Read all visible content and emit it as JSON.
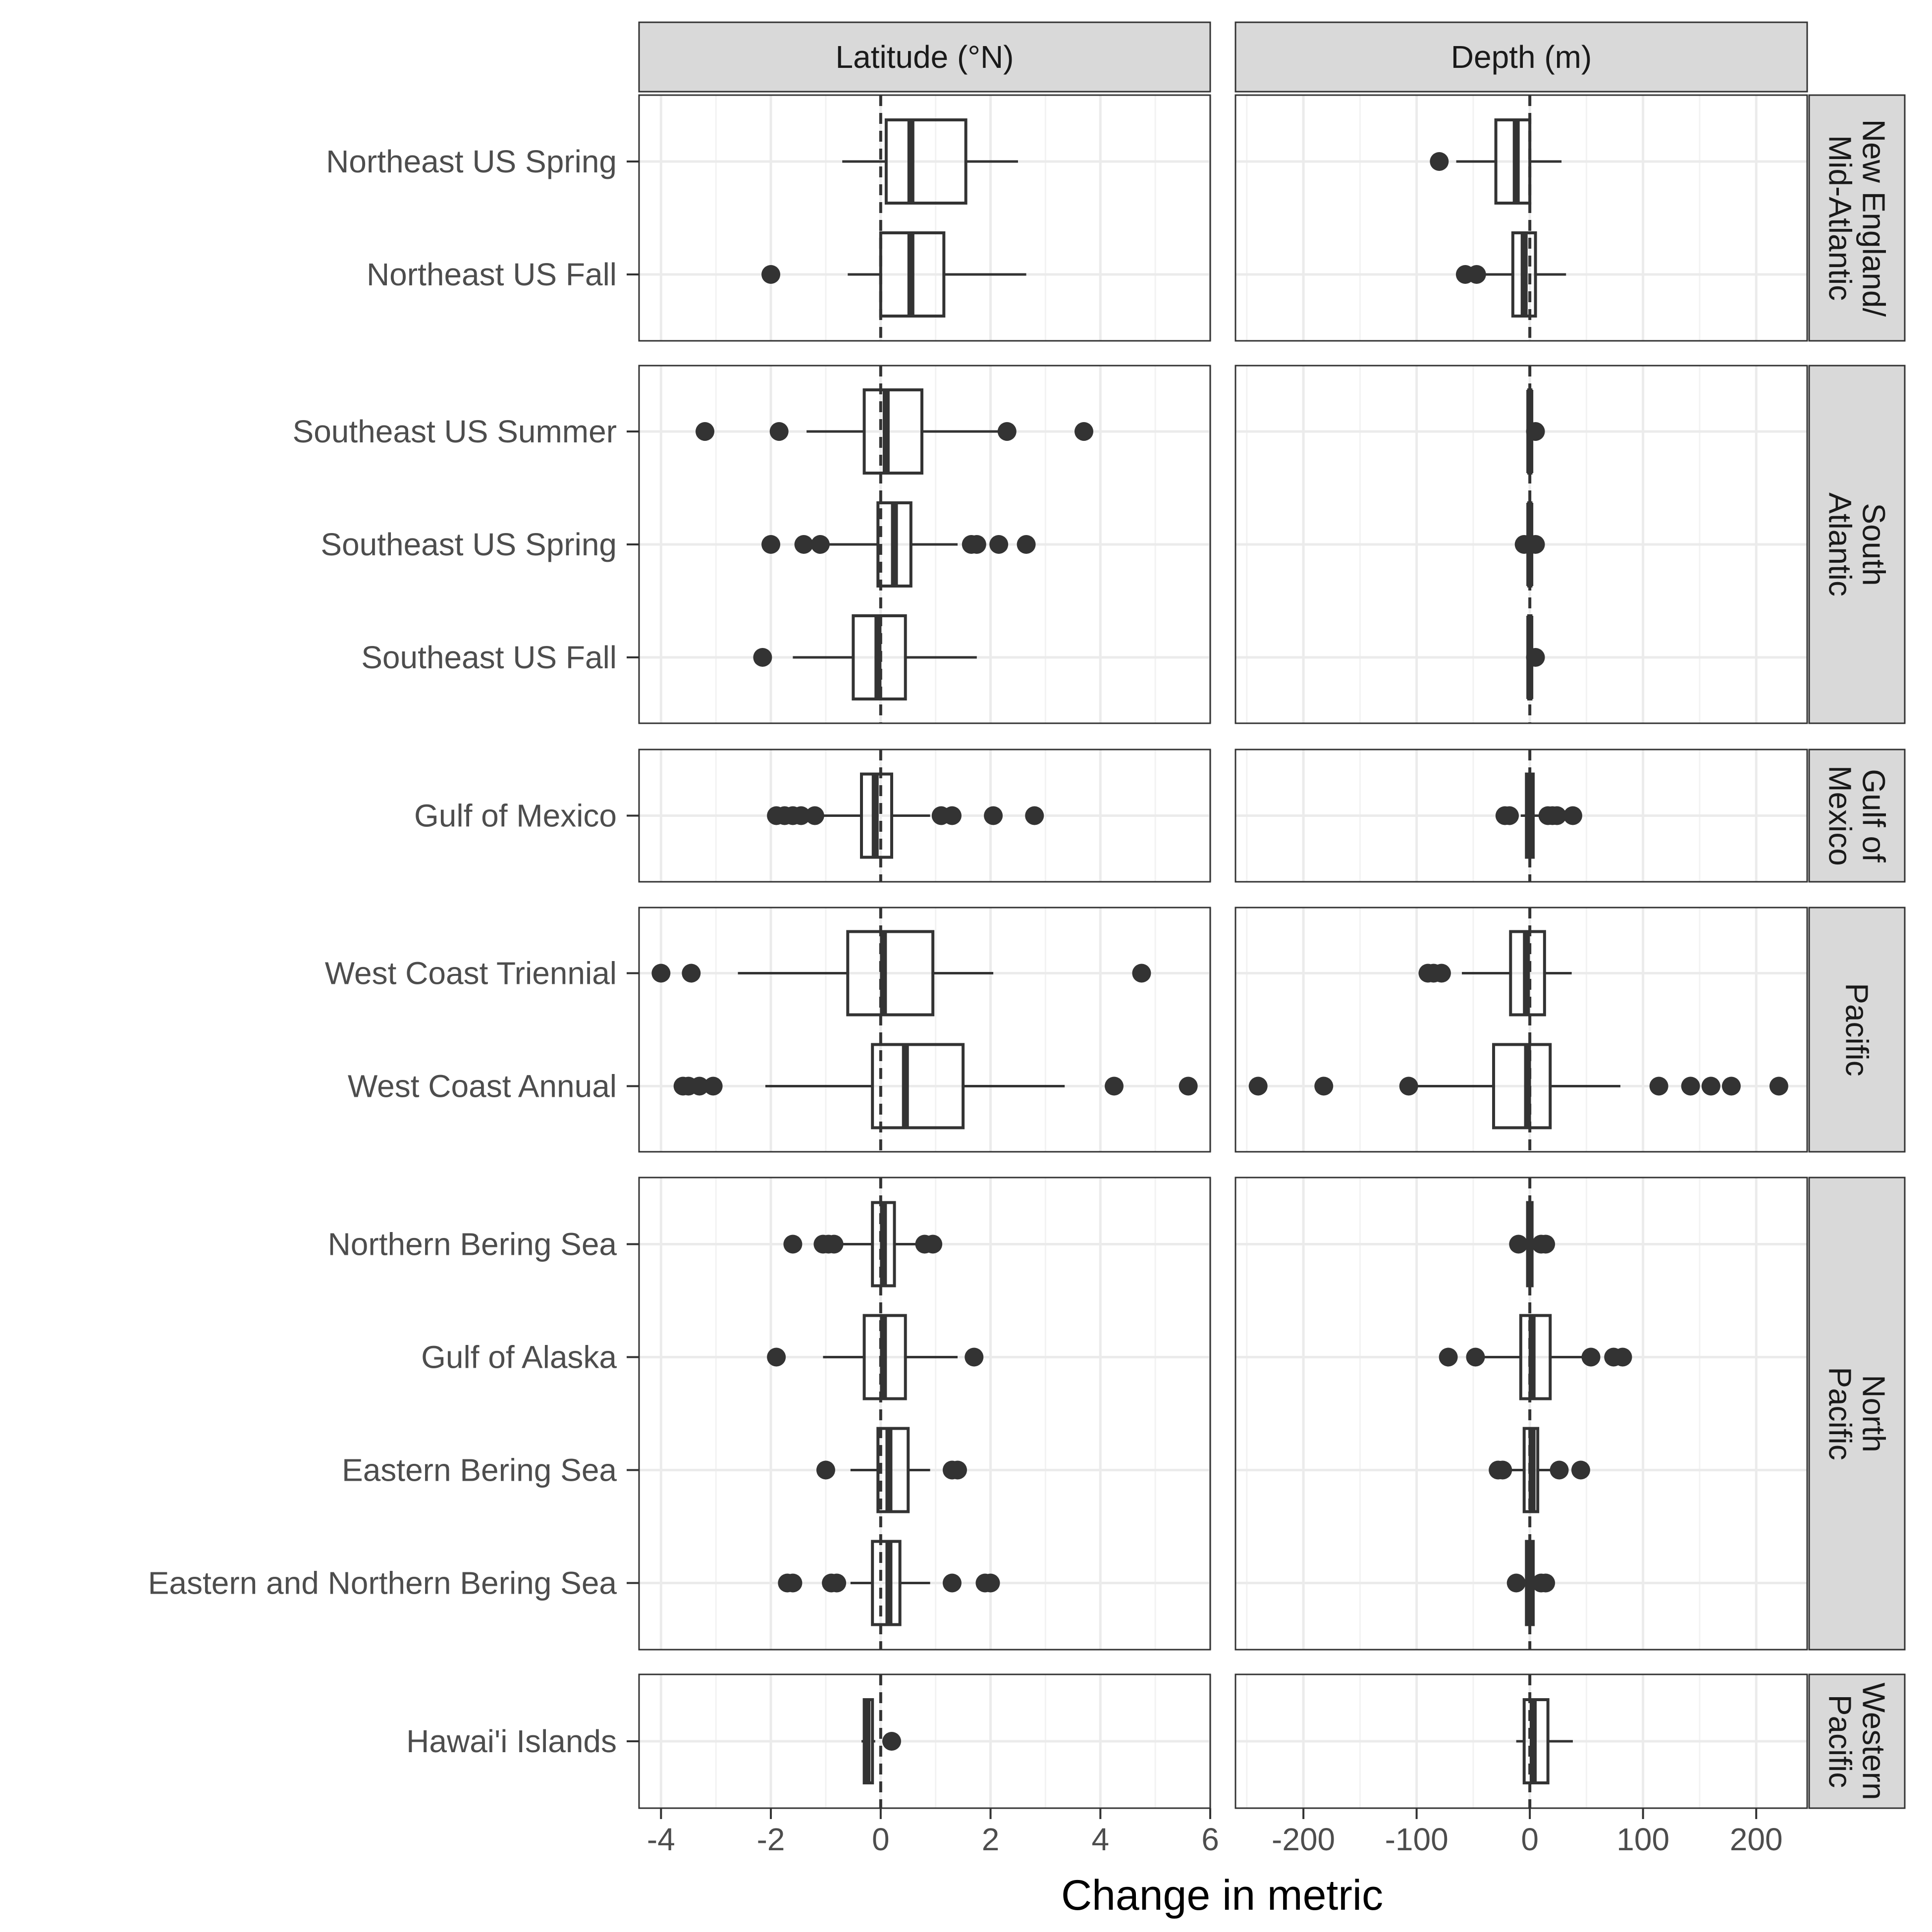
{
  "chart_data": {
    "type": "boxplot",
    "xlabel": "Change in metric",
    "ylabel": "",
    "facet_columns": [
      {
        "name": "Latitude (°N)",
        "xlim": [
          -4.4,
          6.0
        ],
        "ticks": [
          -4,
          -2,
          0,
          2,
          4,
          6
        ],
        "tick_labels": [
          "-4",
          "-2",
          "0",
          "2",
          "4",
          "6"
        ]
      },
      {
        "name": "Depth (m)",
        "xlim": [
          -260,
          245
        ],
        "ticks": [
          -200,
          -100,
          0,
          100,
          200
        ],
        "tick_labels": [
          "-200",
          "-100",
          "0",
          "100",
          "200"
        ]
      }
    ],
    "regions": [
      {
        "name": "New England/ Mid-Atlantic",
        "label_lines": [
          "New England/",
          "Mid-Atlantic"
        ],
        "surveys": [
          "Northeast US Spring",
          "Northeast US Fall"
        ]
      },
      {
        "name": "South Atlantic",
        "label_lines": [
          "South",
          "Atlantic"
        ],
        "surveys": [
          "Southeast US Summer",
          "Southeast US Spring",
          "Southeast US Fall"
        ]
      },
      {
        "name": "Gulf of Mexico",
        "label_lines": [
          "Gulf of",
          "Mexico"
        ],
        "surveys": [
          "Gulf of Mexico"
        ]
      },
      {
        "name": "Pacific",
        "label_lines": [
          "Pacific"
        ],
        "surveys": [
          "West Coast Triennial",
          "West Coast Annual"
        ]
      },
      {
        "name": "North Pacific",
        "label_lines": [
          "North",
          "Pacific"
        ],
        "surveys": [
          "Northern Bering Sea",
          "Gulf of Alaska",
          "Eastern Bering Sea",
          "Eastern and Northern Bering Sea"
        ]
      },
      {
        "name": "Western Pacific",
        "label_lines": [
          "Western",
          "Pacific"
        ],
        "surveys": [
          "Hawai'i Islands"
        ]
      }
    ],
    "reference_line": 0,
    "series": {
      "Latitude (°N)": [
        {
          "survey": "Northeast US Spring",
          "whisker_low": -0.7,
          "q1": 0.1,
          "median": 0.55,
          "q3": 1.55,
          "whisker_high": 2.5,
          "outliers": []
        },
        {
          "survey": "Northeast US Fall",
          "whisker_low": -0.6,
          "q1": 0.0,
          "median": 0.55,
          "q3": 1.15,
          "whisker_high": 2.65,
          "outliers": [
            -2.0
          ]
        },
        {
          "survey": "Southeast US Summer",
          "whisker_low": -1.35,
          "q1": -0.3,
          "median": 0.1,
          "q3": 0.75,
          "whisker_high": 2.25,
          "outliers": [
            -3.2,
            -1.85,
            2.3,
            3.7
          ]
        },
        {
          "survey": "Southeast US Spring",
          "whisker_low": -1.0,
          "q1": -0.05,
          "median": 0.25,
          "q3": 0.55,
          "whisker_high": 1.4,
          "outliers": [
            -2.0,
            -1.4,
            -1.1,
            1.65,
            1.75,
            2.15,
            2.65
          ]
        },
        {
          "survey": "Southeast US Fall",
          "whisker_low": -1.6,
          "q1": -0.5,
          "median": -0.05,
          "q3": 0.45,
          "whisker_high": 1.75,
          "outliers": [
            -2.15
          ]
        },
        {
          "survey": "Gulf of Mexico",
          "whisker_low": -1.1,
          "q1": -0.35,
          "median": -0.1,
          "q3": 0.2,
          "whisker_high": 0.9,
          "outliers": [
            -1.9,
            -1.75,
            -1.6,
            -1.45,
            -1.2,
            1.1,
            1.3,
            2.05,
            2.8
          ]
        },
        {
          "survey": "West Coast Triennial",
          "whisker_low": -2.6,
          "q1": -0.6,
          "median": 0.05,
          "q3": 0.95,
          "whisker_high": 2.05,
          "outliers": [
            -4.0,
            -3.45,
            4.75
          ]
        },
        {
          "survey": "West Coast Annual",
          "whisker_low": -2.1,
          "q1": -0.15,
          "median": 0.45,
          "q3": 1.5,
          "whisker_high": 3.35,
          "outliers": [
            -3.6,
            -3.5,
            -3.3,
            -3.05,
            4.25,
            5.6
          ]
        },
        {
          "survey": "Northern Bering Sea",
          "whisker_low": -0.7,
          "q1": -0.15,
          "median": 0.05,
          "q3": 0.25,
          "whisker_high": 0.7,
          "outliers": [
            -1.6,
            -1.05,
            -0.95,
            -0.85,
            0.8,
            0.95
          ]
        },
        {
          "survey": "Gulf of Alaska",
          "whisker_low": -1.05,
          "q1": -0.3,
          "median": 0.05,
          "q3": 0.45,
          "whisker_high": 1.4,
          "outliers": [
            -1.9,
            1.7
          ]
        },
        {
          "survey": "Eastern Bering Sea",
          "whisker_low": -0.55,
          "q1": -0.05,
          "median": 0.15,
          "q3": 0.5,
          "whisker_high": 0.9,
          "outliers": [
            -1.0,
            1.3,
            1.4
          ]
        },
        {
          "survey": "Eastern and Northern Bering Sea",
          "whisker_low": -0.55,
          "q1": -0.15,
          "median": 0.15,
          "q3": 0.35,
          "whisker_high": 0.9,
          "outliers": [
            -1.7,
            -1.6,
            -0.9,
            -0.8,
            1.3,
            1.9,
            2.0
          ]
        },
        {
          "survey": "Hawai'i Islands",
          "whisker_low": -0.35,
          "q1": -0.3,
          "median": -0.25,
          "q3": -0.15,
          "whisker_high": -0.1,
          "outliers": [
            0.2
          ]
        }
      ],
      "Depth (m)": [
        {
          "survey": "Northeast US Spring",
          "whisker_low": -65,
          "q1": -30,
          "median": -12,
          "q3": 0,
          "whisker_high": 28,
          "outliers": [
            -80
          ]
        },
        {
          "survey": "Northeast US Fall",
          "whisker_low": -40,
          "q1": -15,
          "median": -5,
          "q3": 5,
          "whisker_high": 32,
          "outliers": [
            -57,
            -47
          ]
        },
        {
          "survey": "Southeast US Summer",
          "whisker_low": -2,
          "q1": -1,
          "median": 0,
          "q3": 1,
          "whisker_high": 3,
          "outliers": [
            5
          ]
        },
        {
          "survey": "Southeast US Spring",
          "whisker_low": -2,
          "q1": -1,
          "median": 0,
          "q3": 1,
          "whisker_high": 2,
          "outliers": [
            -5,
            5
          ]
        },
        {
          "survey": "Southeast US Fall",
          "whisker_low": -2,
          "q1": -1,
          "median": 0,
          "q3": 1,
          "whisker_high": 2,
          "outliers": [
            5
          ]
        },
        {
          "survey": "Gulf of Mexico",
          "whisker_low": -8,
          "q1": -3,
          "median": 0,
          "q3": 3,
          "whisker_high": 8,
          "outliers": [
            -22,
            -18,
            16,
            20,
            24,
            38
          ]
        },
        {
          "survey": "West Coast Triennial",
          "whisker_low": -60,
          "q1": -17,
          "median": -3,
          "q3": 13,
          "whisker_high": 37,
          "outliers": [
            -90,
            -85,
            -78
          ]
        },
        {
          "survey": "West Coast Annual",
          "whisker_low": -105,
          "q1": -32,
          "median": -2,
          "q3": 18,
          "whisker_high": 80,
          "outliers": [
            -240,
            -182,
            -107,
            114,
            142,
            160,
            178,
            220
          ]
        },
        {
          "survey": "Northern Bering Sea",
          "whisker_low": -4,
          "q1": -2,
          "median": 0,
          "q3": 2,
          "whisker_high": 6,
          "outliers": [
            -10,
            10,
            14
          ]
        },
        {
          "survey": "Gulf of Alaska",
          "whisker_low": -40,
          "q1": -8,
          "median": 2,
          "q3": 18,
          "whisker_high": 52,
          "outliers": [
            -72,
            -48,
            54,
            74,
            82
          ]
        },
        {
          "survey": "Eastern Bering Sea",
          "whisker_low": -20,
          "q1": -5,
          "median": 2,
          "q3": 7,
          "whisker_high": 20,
          "outliers": [
            -28,
            -24,
            26,
            45
          ]
        },
        {
          "survey": "Eastern and Northern Bering Sea",
          "whisker_low": -6,
          "q1": -3,
          "median": 0,
          "q3": 3,
          "whisker_high": 8,
          "outliers": [
            -12,
            10,
            14
          ]
        },
        {
          "survey": "Hawai'i Islands",
          "whisker_low": -12,
          "q1": -5,
          "median": 3,
          "q3": 16,
          "whisker_high": 38,
          "outliers": []
        }
      ]
    }
  }
}
